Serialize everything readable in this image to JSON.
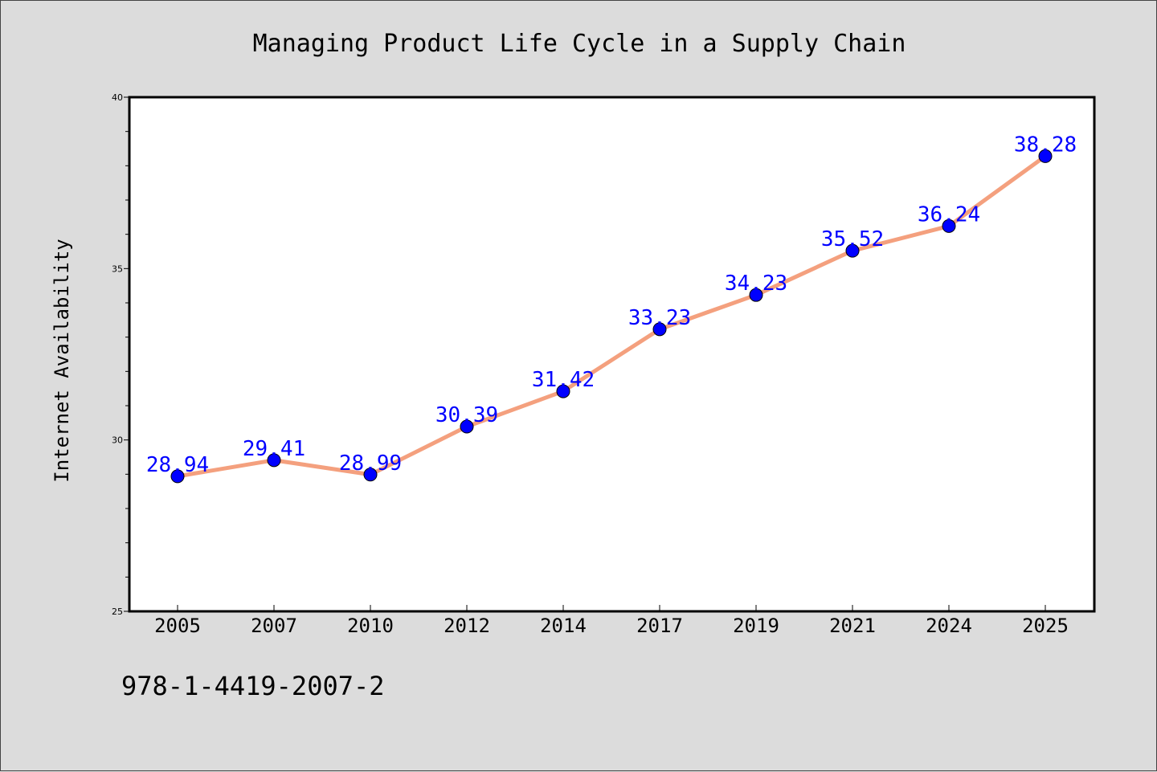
{
  "chart_data": {
    "type": "line",
    "title": "Managing Product Life Cycle in a Supply Chain",
    "xlabel": "",
    "ylabel": "Internet Availability",
    "categories": [
      "2005",
      "2007",
      "2010",
      "2012",
      "2014",
      "2017",
      "2019",
      "2021",
      "2024",
      "2025"
    ],
    "series": [
      {
        "values": [
          28.94,
          29.41,
          28.99,
          30.39,
          31.42,
          33.23,
          34.23,
          35.52,
          36.24,
          38.28
        ]
      }
    ],
    "data_labels": [
      "28.94",
      "29.41",
      "28.99",
      "30.39",
      "31.42",
      "33.23",
      "34.23",
      "35.52",
      "36.24",
      "38.28"
    ],
    "ylim": [
      25,
      40
    ],
    "yticks": [
      "25",
      "30",
      "35",
      "40"
    ],
    "grid": false,
    "line_color": "#f4a07e",
    "marker_color": "#0000ff",
    "label_color": "#0000ff"
  },
  "footnote": "978-1-4419-2007-2"
}
